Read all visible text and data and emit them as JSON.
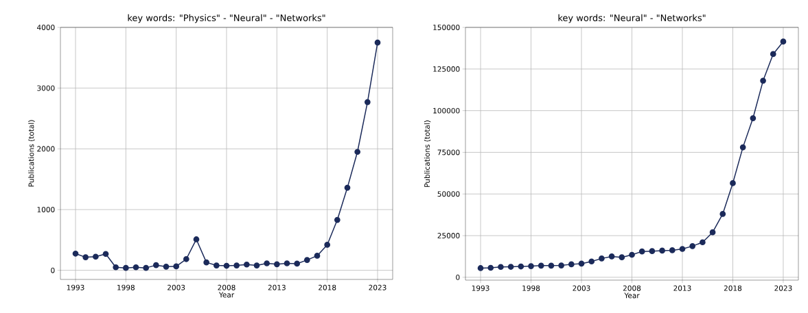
{
  "chart_data": [
    {
      "type": "line",
      "title": "key words: \"Physics\" - \"Neural\" - \"Networks\"",
      "xlabel": "Year",
      "ylabel": "Publications (total)",
      "x": [
        1993,
        1994,
        1995,
        1996,
        1997,
        1998,
        1999,
        2000,
        2001,
        2002,
        2003,
        2004,
        2005,
        2006,
        2007,
        2008,
        2009,
        2010,
        2011,
        2012,
        2013,
        2014,
        2015,
        2016,
        2017,
        2018,
        2019,
        2020,
        2021,
        2022,
        2023
      ],
      "series": [
        {
          "color": "#1b2a5a",
          "values": [
            275,
            215,
            225,
            270,
            50,
            40,
            50,
            40,
            85,
            60,
            65,
            185,
            510,
            130,
            80,
            75,
            80,
            95,
            80,
            115,
            100,
            115,
            110,
            170,
            240,
            420,
            830,
            1360,
            1950,
            2770,
            3750
          ]
        }
      ],
      "xlim": [
        1991.5,
        2024.5
      ],
      "ylim": [
        -150,
        4000
      ],
      "xticks": [
        1993,
        1998,
        2003,
        2008,
        2013,
        2018,
        2023
      ],
      "yticks": [
        0,
        1000,
        2000,
        3000,
        4000
      ],
      "grid": true,
      "marker": "circle",
      "line_style": "solid"
    },
    {
      "type": "line",
      "title": "key words: \"Neural\" - \"Networks\"",
      "xlabel": "Year",
      "ylabel": "Publications (total)",
      "x": [
        1993,
        1994,
        1995,
        1996,
        1997,
        1998,
        1999,
        2000,
        2001,
        2002,
        2003,
        2004,
        2005,
        2006,
        2007,
        2008,
        2009,
        2010,
        2011,
        2012,
        2013,
        2014,
        2015,
        2016,
        2017,
        2018,
        2019,
        2020,
        2021,
        2022,
        2023
      ],
      "series": [
        {
          "color": "#1b2a5a",
          "values": [
            5500,
            5700,
            6200,
            6300,
            6500,
            6700,
            7000,
            7000,
            7100,
            7800,
            8200,
            9500,
            11300,
            12500,
            12000,
            13500,
            15500,
            15700,
            16000,
            16200,
            17000,
            18700,
            21000,
            27000,
            38000,
            56500,
            78000,
            95500,
            118000,
            134000,
            141500
          ]
        }
      ],
      "xlim": [
        1991.5,
        2024.5
      ],
      "ylim": [
        -1700,
        150000
      ],
      "xticks": [
        1993,
        1998,
        2003,
        2008,
        2013,
        2018,
        2023
      ],
      "yticks": [
        0,
        25000,
        50000,
        75000,
        100000,
        125000,
        150000
      ],
      "grid": true,
      "marker": "circle",
      "line_style": "solid"
    }
  ]
}
